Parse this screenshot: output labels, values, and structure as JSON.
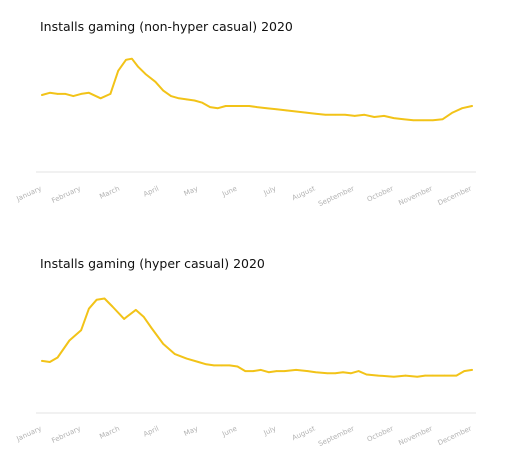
{
  "chart_data": [
    {
      "type": "line",
      "title": "Installs gaming (non-hyper casual) 2020",
      "xlabel": "",
      "ylabel": "",
      "grid": false,
      "line_color": "#f2c318",
      "baseline_color": "#e3e3e3",
      "x_ticks": [
        "January",
        "February",
        "March",
        "April",
        "May",
        "June",
        "July",
        "August",
        "September",
        "October",
        "November",
        "December"
      ],
      "x": [
        0,
        0.2,
        0.4,
        0.6,
        0.8,
        1.0,
        1.2,
        1.5,
        1.75,
        1.95,
        2.15,
        2.3,
        2.45,
        2.65,
        2.9,
        3.1,
        3.3,
        3.5,
        3.7,
        3.9,
        4.1,
        4.3,
        4.5,
        4.7,
        4.9,
        5.1,
        5.3,
        5.5,
        5.75,
        6.0,
        6.25,
        6.5,
        6.75,
        7.0,
        7.25,
        7.5,
        7.75,
        8.0,
        8.25,
        8.5,
        8.75,
        9.0,
        9.25,
        9.5,
        9.75,
        10.0,
        10.25,
        10.5,
        10.75,
        11.0
      ],
      "values": [
        55,
        56,
        55.5,
        55.5,
        54.5,
        55.5,
        56,
        53.5,
        55.5,
        66,
        71,
        71.5,
        68,
        64.5,
        61,
        57,
        54.5,
        53.5,
        53,
        52.5,
        51.5,
        49.5,
        49,
        50,
        50,
        50,
        50,
        49.5,
        49,
        48.5,
        48,
        47.5,
        47,
        46.5,
        46,
        46,
        46,
        45.5,
        46,
        45,
        45.5,
        44.5,
        44,
        43.5,
        43.5,
        43.5,
        44,
        47,
        49,
        50
      ],
      "ylim": [
        20,
        80
      ]
    },
    {
      "type": "line",
      "title": "Installs gaming (hyper casual) 2020",
      "xlabel": "",
      "ylabel": "",
      "grid": false,
      "line_color": "#f2c318",
      "baseline_color": "#e3e3e3",
      "x_ticks": [
        "January",
        "February",
        "March",
        "April",
        "May",
        "June",
        "July",
        "August",
        "September",
        "October",
        "November",
        "December"
      ],
      "x": [
        0,
        0.2,
        0.4,
        0.7,
        1.0,
        1.2,
        1.4,
        1.6,
        1.8,
        2.1,
        2.4,
        2.6,
        2.8,
        3.1,
        3.4,
        3.7,
        4.0,
        4.2,
        4.4,
        4.6,
        4.8,
        5.0,
        5.2,
        5.4,
        5.6,
        5.8,
        6.0,
        6.2,
        6.5,
        6.8,
        7.0,
        7.3,
        7.5,
        7.7,
        7.9,
        8.1,
        8.3,
        8.6,
        9.0,
        9.3,
        9.6,
        9.8,
        10.0,
        10.3,
        10.6,
        10.8,
        11.0
      ],
      "values": [
        43,
        42.5,
        44.5,
        52,
        56.5,
        66,
        70,
        70.5,
        67,
        61.5,
        65.5,
        62.5,
        57.5,
        50.5,
        46,
        44,
        42.5,
        41.5,
        41,
        41,
        41,
        40.5,
        38.5,
        38.5,
        39,
        38,
        38.5,
        38.5,
        39,
        38.5,
        38,
        37.5,
        37.5,
        38,
        37.5,
        38.5,
        37,
        36.5,
        36,
        36.5,
        36,
        36.5,
        36.5,
        36.5,
        36.5,
        38.5,
        39
      ],
      "ylim": [
        20,
        80
      ]
    }
  ]
}
